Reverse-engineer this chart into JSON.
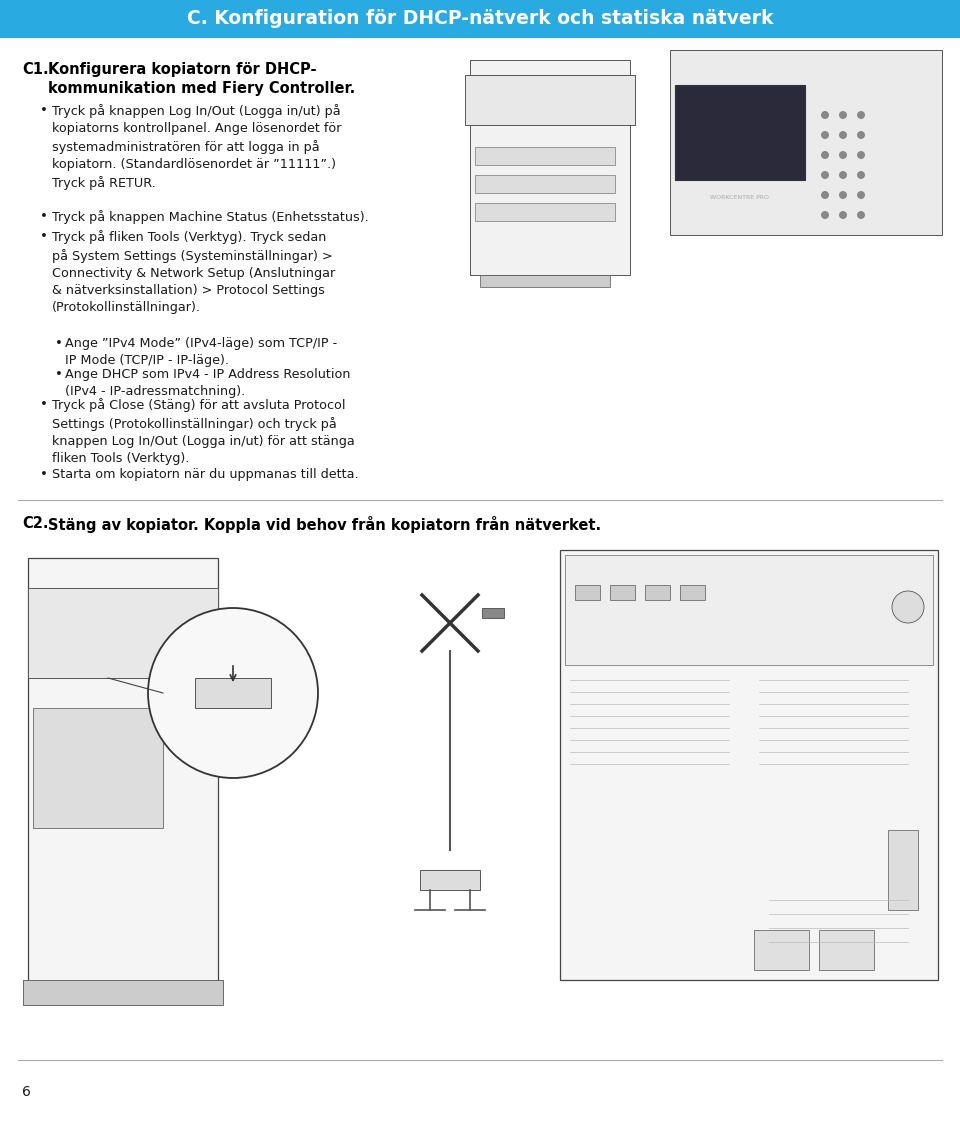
{
  "header_text": "C. Konfiguration för DHCP-nätverk och statiska nätverk",
  "header_bg": "#29ABE2",
  "header_text_color": "#FFFFFF",
  "header_fontsize": 13.5,
  "bg_color": "#FFFFFF",
  "text_color": "#1A1A1A",
  "title_color": "#000000",
  "separator_color": "#AAAAAA",
  "body_fontsize": 9.2,
  "title_fontsize": 10.5,
  "page_number": "6",
  "c1_title_bold": "C1. Konfigurera kopiatorn för DHCP-\n    kommunikation med Fiery Controller.",
  "bullet1": "Tryck på knappen Log In/Out (Logga in/ut) på\nkopiatorns kontrollpanel. Ange lösenordet för\nsystemadministratören för att logga in på\nkopiatorn. (Standardlösenordet är ”11111”.)\nTryck på RETUR.",
  "bullet2": "Tryck på knappen Machine Status (Enhetsstatus).",
  "bullet3": "Tryck på fliken Tools (Verktyg). Tryck sedan\npå System Settings (Systeminställningar) >\nConnectivity & Network Setup (Anslutningar\n& nätverksinstallation) > Protocol Settings\n(Protokollinställningar).",
  "sub1": "Ange ”IPv4 Mode” (IPv4-läge) som TCP/IP -\nIP Mode (TCP/IP - IP-läge).",
  "sub2": "Ange DHCP som IPv4 - IP Address Resolution\n(IPv4 - IP-adressmatchning).",
  "bullet4": "Tryck på Close (Stäng) för att avsluta Protocol\nSettings (Protokollinställningar) och tryck på\nknappen Log In/Out (Logga in/ut) för att stänga\nfliken Tools (Verktyg).",
  "bullet5": "Starta om kopiatorn när du uppmanas till detta.",
  "c2_title": "C2. Stäng av kopiator. Koppla vid behov från kopiatorn från nätverket."
}
